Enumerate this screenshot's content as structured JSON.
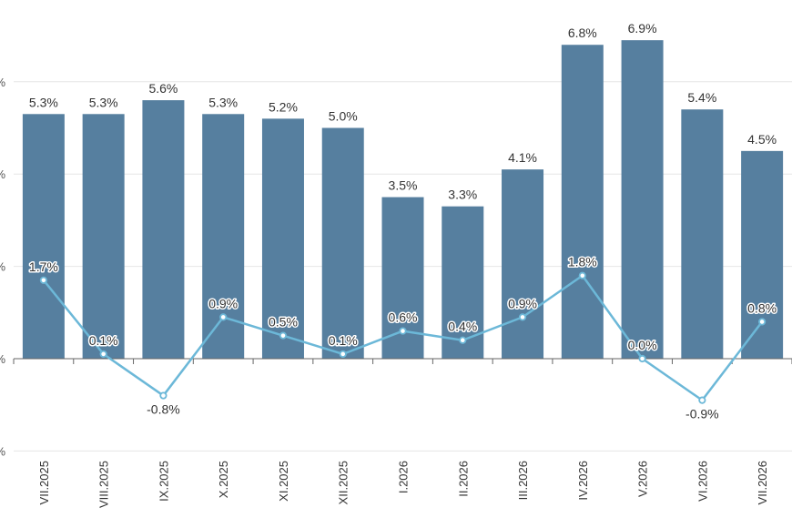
{
  "chart_data": {
    "type": "bar",
    "categories": [
      "VII.2025",
      "VIII.2025",
      "IX.2025",
      "X.2025",
      "XI.2025",
      "XII.2025",
      "I.2026",
      "II.2026",
      "III.2026",
      "IV.2026",
      "V.2026",
      "VI.2026",
      "VII.2026"
    ],
    "series": [
      {
        "type": "bar",
        "values": [
          5.3,
          5.3,
          5.6,
          5.3,
          5.2,
          5.0,
          3.5,
          3.3,
          4.1,
          6.8,
          6.9,
          5.4,
          4.5
        ],
        "labels": [
          "5.3%",
          "5.3%",
          "5.6%",
          "5.3%",
          "5.2%",
          "5.0%",
          "3.5%",
          "3.3%",
          "4.1%",
          "6.8%",
          "6.9%",
          "5.4%",
          "4.5%"
        ],
        "color": "#567f9f"
      },
      {
        "type": "line",
        "values": [
          1.7,
          0.1,
          -0.8,
          0.9,
          0.5,
          0.1,
          0.6,
          0.4,
          0.9,
          1.8,
          0.0,
          -0.9,
          0.8
        ],
        "labels": [
          "1.7%",
          "0.1%",
          "-0.8%",
          "0.9%",
          "0.5%",
          "0.1%",
          "0.6%",
          "0.4%",
          "0.9%",
          "1.8%",
          "0.0%",
          "-0.9%",
          "0.8%"
        ],
        "color": "#6cb8d8"
      }
    ],
    "ylim": [
      -2,
      8
    ],
    "y_ticks": [
      -2,
      0,
      2,
      4,
      6
    ],
    "y_tick_labels": [
      "%",
      "%",
      "%",
      "%",
      "%"
    ],
    "grid": true,
    "title": "",
    "xlabel": "",
    "ylabel": ""
  }
}
